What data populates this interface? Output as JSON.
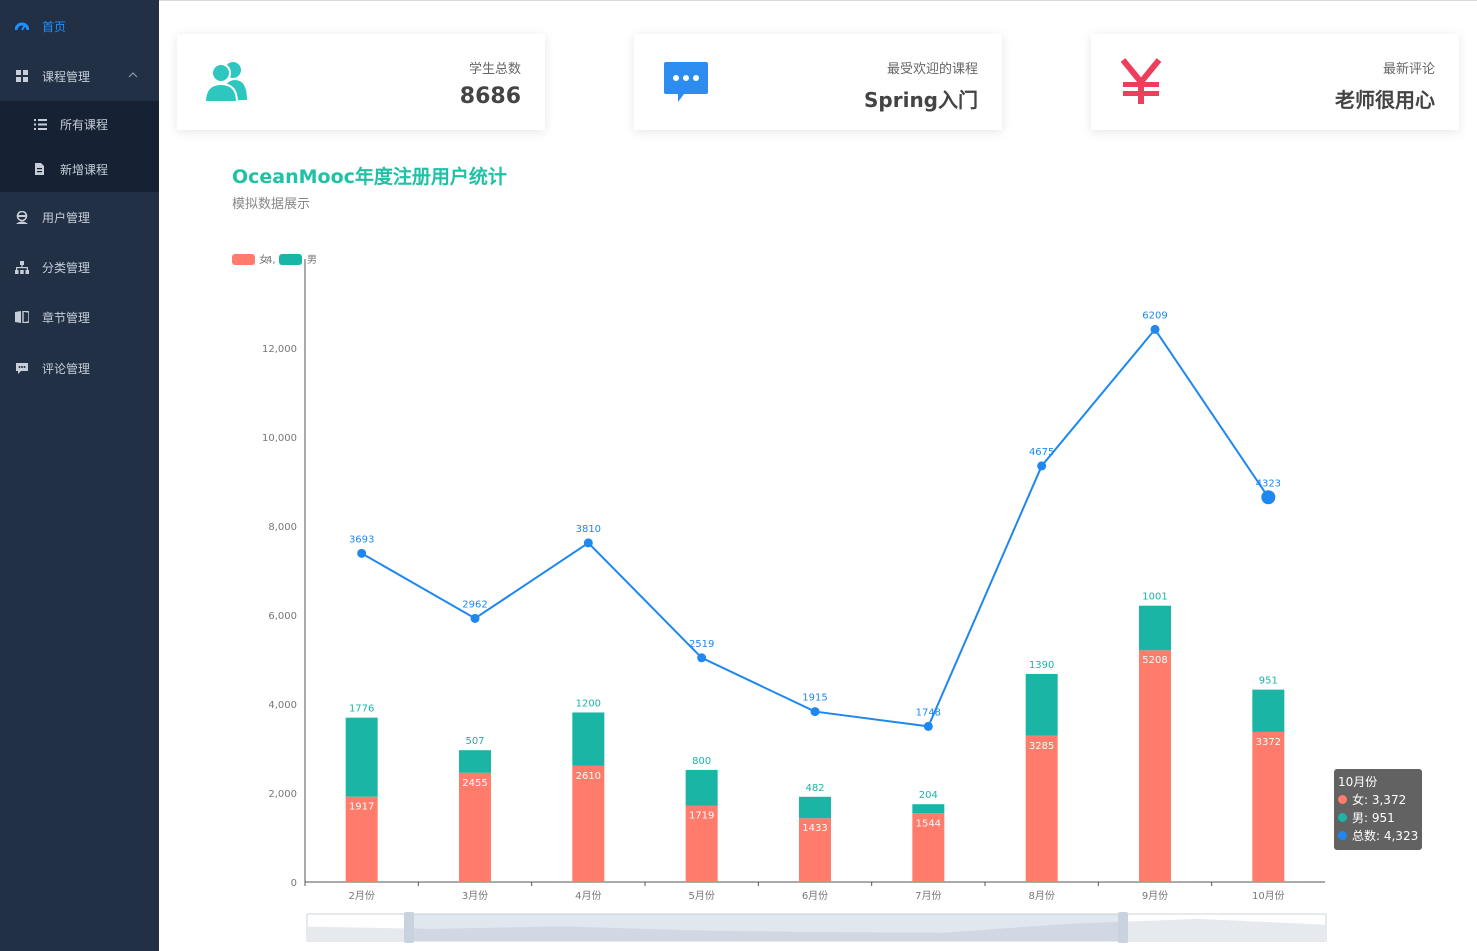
{
  "sidebar": {
    "items": [
      {
        "label": "首页",
        "icon": "dashboard-icon"
      },
      {
        "label": "课程管理",
        "icon": "grid-icon"
      },
      {
        "label": "用户管理",
        "icon": "user-icon"
      },
      {
        "label": "分类管理",
        "icon": "sitemap-icon"
      },
      {
        "label": "章节管理",
        "icon": "book-icon"
      },
      {
        "label": "评论管理",
        "icon": "comment-icon"
      }
    ],
    "submenu": [
      {
        "label": "所有课程",
        "icon": "list-icon"
      },
      {
        "label": "新增课程",
        "icon": "edit-file-icon"
      }
    ]
  },
  "cards": [
    {
      "label": "学生总数",
      "value": "8686",
      "icon": "users-icon",
      "color": "#2ec7c0"
    },
    {
      "label": "最受欢迎的课程",
      "value": "Spring入门",
      "icon": "chat-icon",
      "color": "#2d8cf0"
    },
    {
      "label": "最新评论",
      "value": "老师很用心",
      "icon": "yen-icon",
      "color": "#ed3f5b"
    }
  ],
  "chart": {
    "title": "OceanMooc年度注册用户统计",
    "subtitle": "模拟数据展示"
  },
  "chart_data": {
    "type": "bar",
    "categories": [
      "2月份",
      "3月份",
      "4月份",
      "5月份",
      "6月份",
      "7月份",
      "8月份",
      "9月份",
      "10月份"
    ],
    "series": [
      {
        "name": "女",
        "type": "bar",
        "stack": true,
        "values": [
          1917,
          2455,
          2610,
          1719,
          1433,
          1544,
          3285,
          5208,
          3372
        ],
        "color": "#ff7b6b"
      },
      {
        "name": "男",
        "type": "bar",
        "stack": true,
        "values": [
          1776,
          507,
          1200,
          800,
          482,
          204,
          1390,
          1001,
          951
        ],
        "color": "#1ab5a4"
      },
      {
        "name": "总数",
        "type": "line",
        "values": [
          3693,
          2962,
          3810,
          2519,
          1915,
          1748,
          4675,
          6209,
          4323
        ],
        "color": "#1e88f0"
      }
    ],
    "legend_entries": [
      "女",
      "男"
    ],
    "legend_extra": "4,",
    "yticks": [
      "0",
      "2,000",
      "4,000",
      "6,000",
      "8,000",
      "10,000",
      "12,000"
    ],
    "ylim": [
      0,
      14000
    ],
    "line_scale": 2,
    "legend_position": "top-left",
    "grid": false
  },
  "tooltip": {
    "title": "10月份",
    "rows": [
      {
        "text": "女: 3,372",
        "color": "#ff7b6b"
      },
      {
        "text": "男: 951",
        "color": "#1ab5a4"
      },
      {
        "text": "总数: 4,323",
        "color": "#1e88f0"
      }
    ]
  }
}
